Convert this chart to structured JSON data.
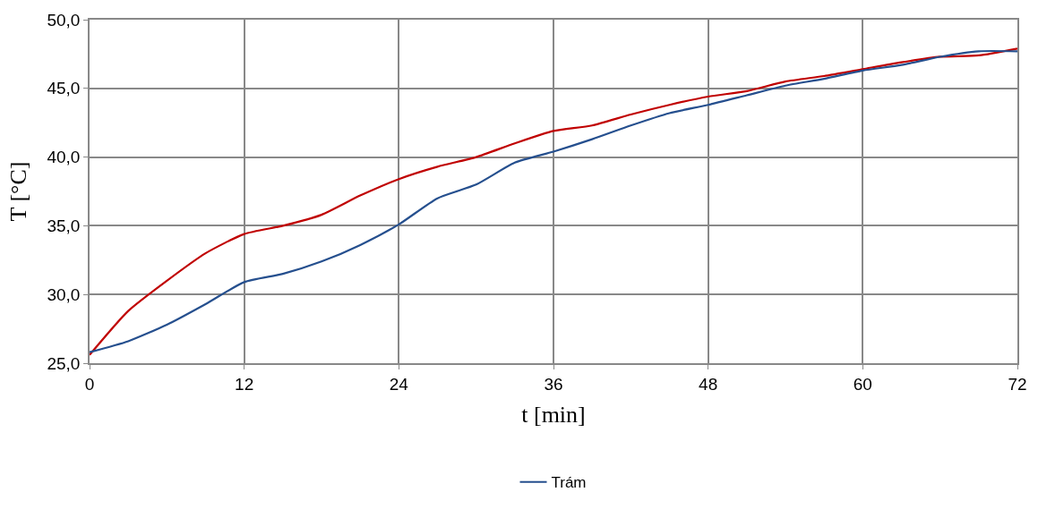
{
  "chart_data": {
    "type": "line",
    "xlabel": "t [min]",
    "ylabel": "T [°C]",
    "x": [
      0,
      3,
      6,
      9,
      12,
      15,
      18,
      21,
      24,
      27,
      30,
      33,
      36,
      39,
      42,
      45,
      48,
      51,
      54,
      57,
      60,
      63,
      66,
      69,
      72
    ],
    "series": [
      {
        "color": "#c00000",
        "values": [
          25.6,
          28.8,
          31.0,
          33.0,
          34.4,
          35.0,
          35.8,
          37.2,
          38.4,
          39.3,
          40.0,
          41.0,
          41.9,
          42.3,
          43.1,
          43.8,
          44.4,
          44.8,
          45.5,
          45.9,
          46.4,
          46.9,
          47.3,
          47.4,
          47.9
        ]
      },
      {
        "name": "Trám",
        "color": "#254f8e",
        "values": [
          25.8,
          26.6,
          27.8,
          29.3,
          30.9,
          31.5,
          32.4,
          33.6,
          35.1,
          37.0,
          38.0,
          39.6,
          40.4,
          41.3,
          42.3,
          43.2,
          43.8,
          44.5,
          45.2,
          45.7,
          46.3,
          46.7,
          47.3,
          47.7,
          47.7
        ]
      }
    ],
    "xlim": [
      0,
      72
    ],
    "xticks": [
      0,
      12,
      24,
      36,
      48,
      60,
      72
    ],
    "ylim": [
      25,
      50
    ],
    "yticks": [
      {
        "value": 25,
        "label": "25,0"
      },
      {
        "value": 30,
        "label": "30,0"
      },
      {
        "value": 35,
        "label": "35,0"
      },
      {
        "value": 40,
        "label": "40,0"
      },
      {
        "value": 45,
        "label": "45,0"
      },
      {
        "value": 50,
        "label": "50,0"
      }
    ],
    "grid": true,
    "legend": "bottom",
    "marker": "none",
    "line_style": "solid"
  }
}
